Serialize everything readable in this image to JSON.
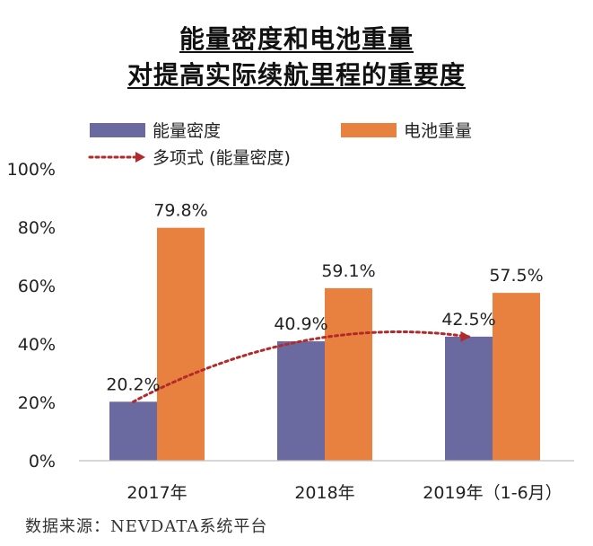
{
  "chart_data": {
    "type": "bar",
    "title_lines": [
      "能量密度和电池重量",
      "对提高实际续航里程的重要度"
    ],
    "categories": [
      "2017年",
      "2018年",
      "2019年（1-6月）"
    ],
    "series": [
      {
        "name": "能量密度",
        "values": [
          20.2,
          40.9,
          42.5
        ],
        "color": "#6a6aa0"
      },
      {
        "name": "电池重量",
        "values": [
          79.8,
          59.1,
          57.5
        ],
        "color": "#e8813f"
      }
    ],
    "data_labels": [
      [
        "20.2%",
        "40.9%",
        "42.5%"
      ],
      [
        "79.8%",
        "59.1%",
        "57.5%"
      ]
    ],
    "trendline": {
      "name": "多项式 (能量密度)",
      "series_index": 0,
      "color": "#b22a2a",
      "style": "dotted"
    },
    "y_ticks": [
      "0%",
      "20%",
      "40%",
      "60%",
      "80%",
      "100%"
    ],
    "ylim": [
      0,
      100
    ],
    "legend_placement": "top",
    "grid": false
  },
  "source_text": "数据来源：NEVDATA系统平台"
}
